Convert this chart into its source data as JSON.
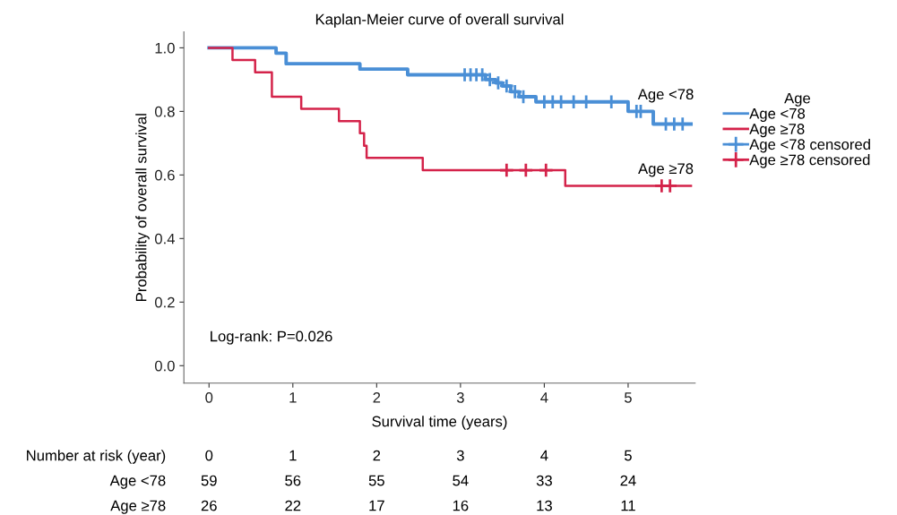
{
  "chart_data": {
    "type": "step",
    "title": "Kaplan-Meier curve of overall survival",
    "xlabel": "Survival time (years)",
    "ylabel": "Probability of overall survival",
    "legend_title": "Age",
    "xlim": [
      -0.3,
      5.8
    ],
    "xticks": [
      0,
      1,
      2,
      3,
      4,
      5
    ],
    "ylim": [
      -0.055,
      1.05
    ],
    "yticks": [
      {
        "value": 0,
        "label": "0.0"
      },
      {
        "value": 0.2,
        "label": "0.2"
      },
      {
        "value": 0.4,
        "label": "0.4"
      },
      {
        "value": 0.6,
        "label": "0.6"
      },
      {
        "value": 0.8,
        "label": "0.8"
      },
      {
        "value": 1,
        "label": "1.0"
      }
    ],
    "grid": false,
    "legend": "right",
    "line_style": "solid",
    "series": [
      {
        "name": "Age <78",
        "color": "#4a8fd6",
        "x": [
          0,
          0.8,
          0.92,
          1.8,
          2.37,
          3.3,
          3.42,
          3.5,
          3.6,
          3.7,
          3.9,
          5.0,
          5.3,
          5.75
        ],
        "values": [
          1.0,
          0.983,
          0.95,
          0.933,
          0.915,
          0.9,
          0.89,
          0.88,
          0.862,
          0.846,
          0.83,
          0.8,
          0.76,
          0.76
        ]
      },
      {
        "name": "Age ≥78",
        "color": "#d4234a",
        "x": [
          0,
          0.28,
          0.55,
          0.75,
          1.1,
          1.55,
          1.8,
          1.85,
          1.88,
          2.55,
          4.25,
          5.75
        ],
        "values": [
          1.0,
          0.962,
          0.923,
          0.846,
          0.808,
          0.769,
          0.731,
          0.692,
          0.654,
          0.615,
          0.566,
          0.566
        ]
      },
      {
        "name": "Age <78 censored",
        "type": "scatter",
        "marker": "cross",
        "color": "#4a8fd6",
        "x": [
          3.05,
          3.12,
          3.19,
          3.26,
          3.35,
          3.45,
          3.55,
          3.65,
          3.75,
          4.0,
          4.1,
          4.2,
          4.35,
          4.5,
          4.8,
          5.1,
          5.15,
          5.45,
          5.55,
          5.65
        ],
        "values": [
          0.915,
          0.915,
          0.915,
          0.915,
          0.9,
          0.89,
          0.88,
          0.862,
          0.846,
          0.83,
          0.83,
          0.83,
          0.83,
          0.83,
          0.83,
          0.8,
          0.8,
          0.76,
          0.76,
          0.76
        ]
      },
      {
        "name": "Age ≥78 censored",
        "type": "scatter",
        "marker": "cross",
        "color": "#d4234a",
        "x": [
          3.55,
          3.78,
          4.02,
          5.4,
          5.5
        ],
        "values": [
          0.615,
          0.615,
          0.615,
          0.566,
          0.566
        ]
      }
    ],
    "annotations": [
      "Age <78",
      "Age ≥78",
      "Log-rank: P=0.026",
      "Number at risk (year)",
      "0",
      "1",
      "2",
      "3",
      "4",
      "5",
      "Age <78",
      "59",
      "56",
      "55",
      "54",
      "33",
      "24",
      "Age ≥78",
      "26",
      "22",
      "17",
      "16",
      "13",
      "11"
    ]
  }
}
